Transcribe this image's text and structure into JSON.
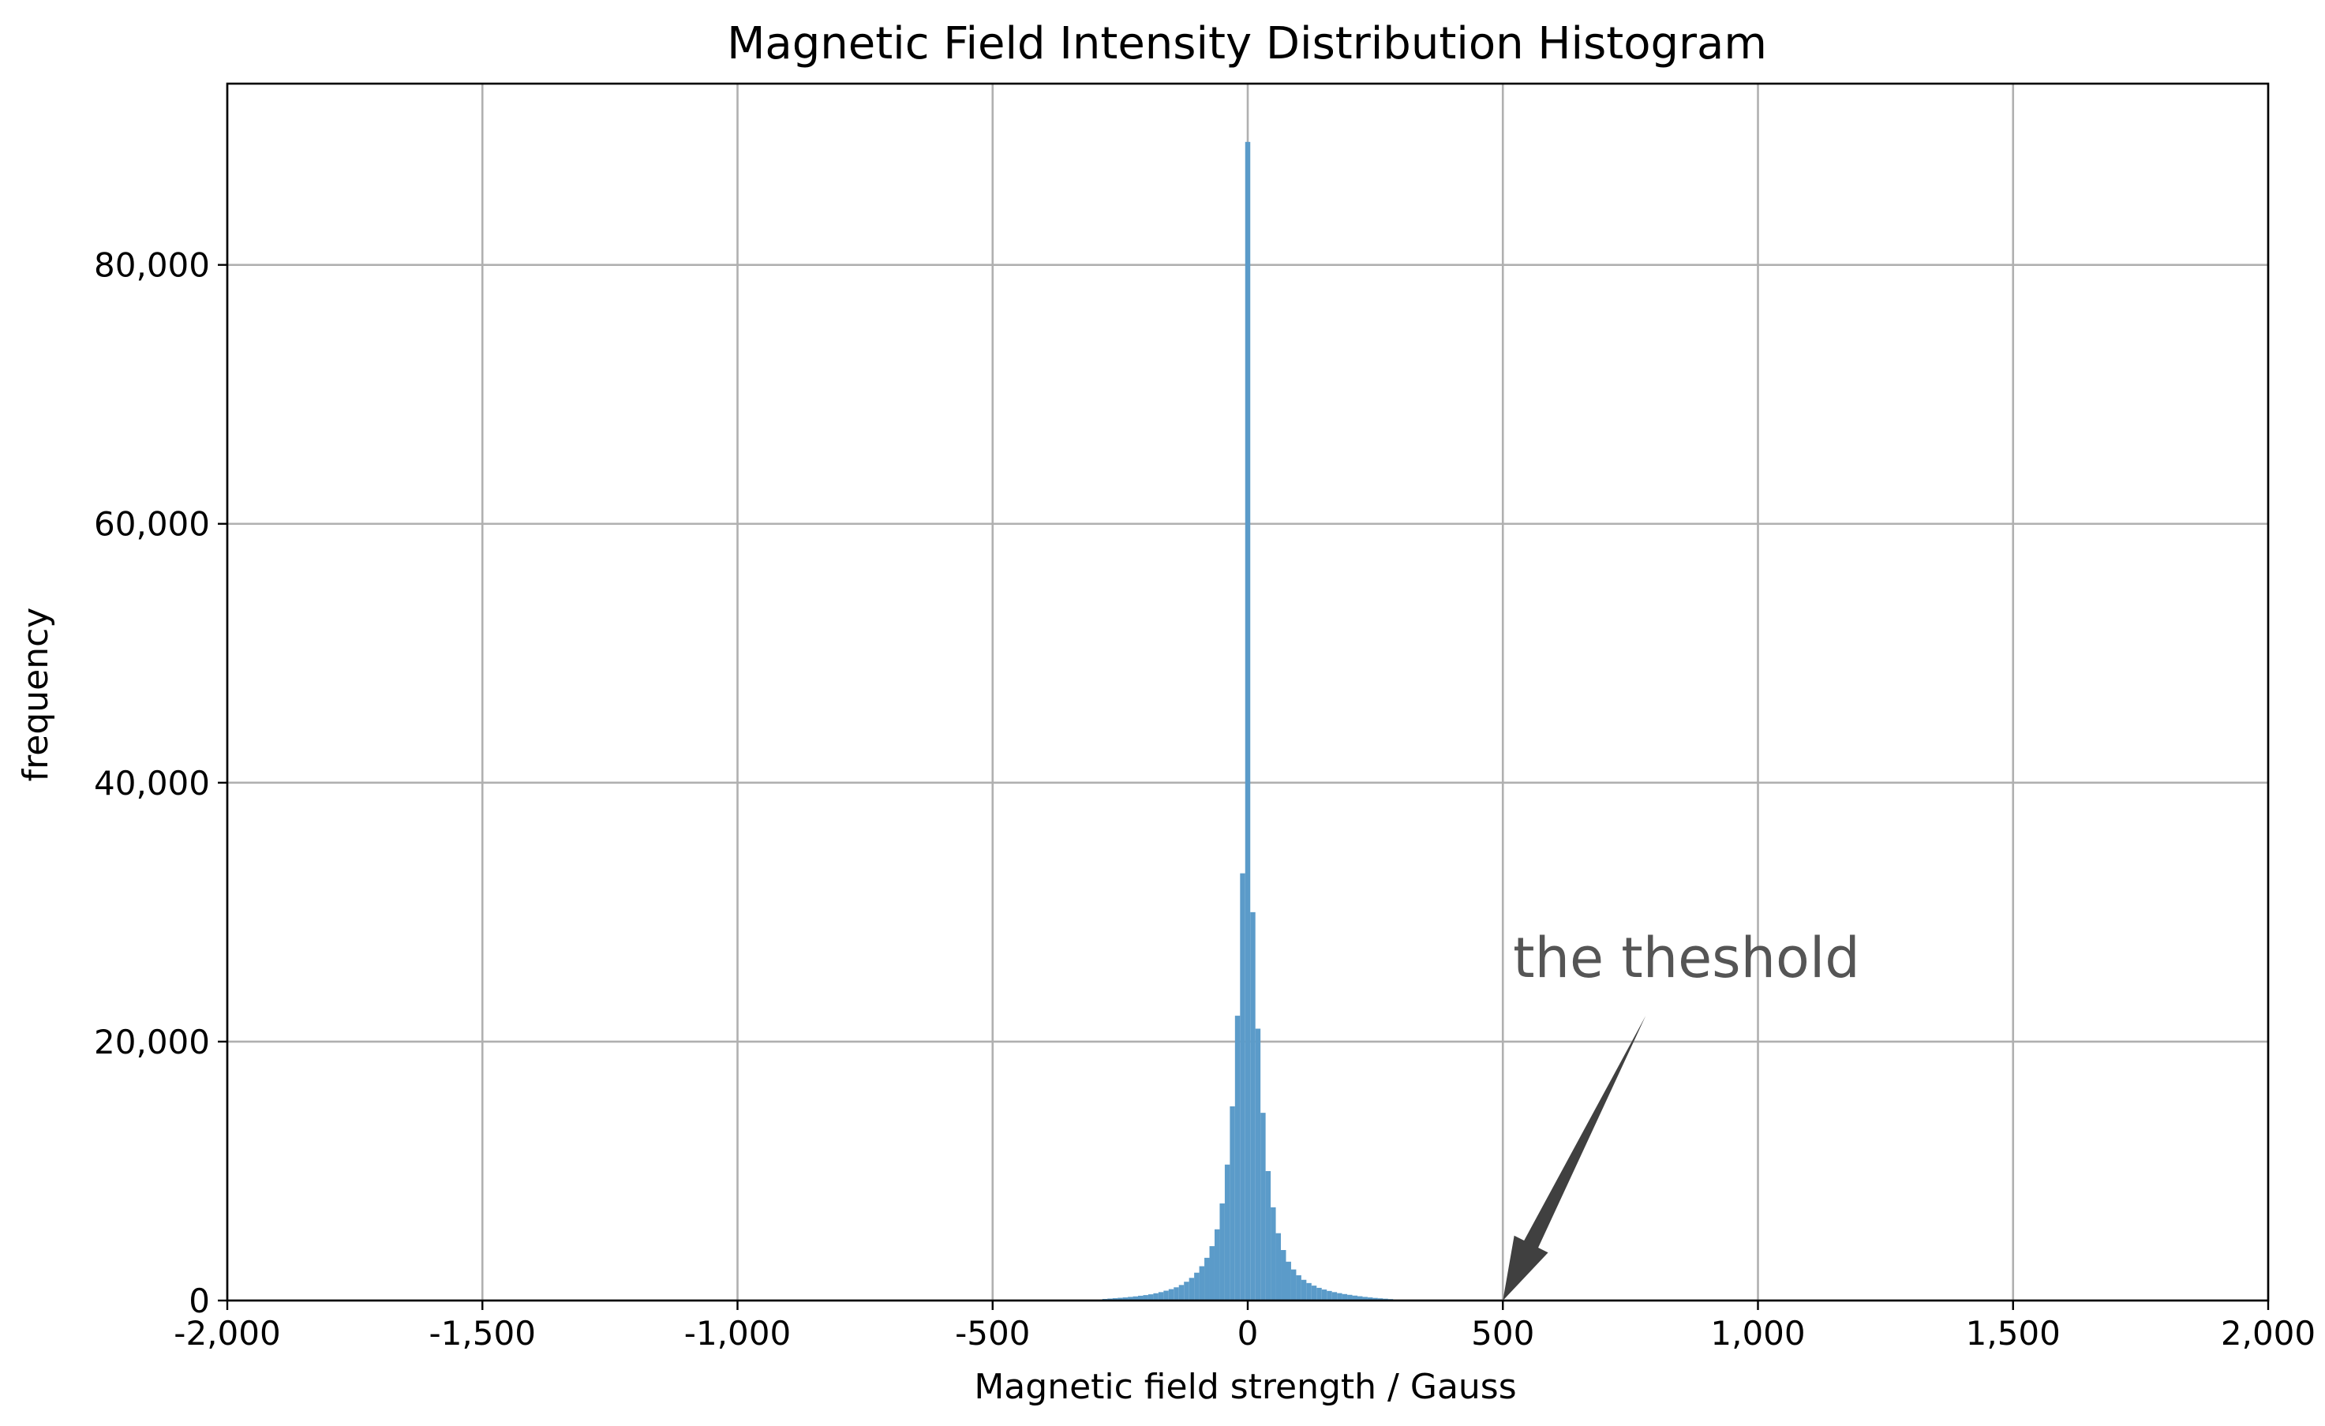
{
  "chart_data": {
    "type": "bar",
    "title": "Magnetic Field Intensity Distribution Histogram",
    "xlabel": "Magnetic field strength / Gauss",
    "ylabel": "frequency",
    "xlim": [
      -2000,
      2000
    ],
    "ylim": [
      0,
      94000
    ],
    "grid": true,
    "color": "#5b9bc9",
    "x_ticks": [
      {
        "value": -2000,
        "label": "-2,000"
      },
      {
        "value": -1500,
        "label": "-1,500"
      },
      {
        "value": -1000,
        "label": "-1,000"
      },
      {
        "value": -500,
        "label": "-500"
      },
      {
        "value": 0,
        "label": "0"
      },
      {
        "value": 500,
        "label": "500"
      },
      {
        "value": 1000,
        "label": "1,000"
      },
      {
        "value": 1500,
        "label": "1,500"
      },
      {
        "value": 2000,
        "label": "2,000"
      }
    ],
    "y_ticks": [
      {
        "value": 0,
        "label": "0"
      },
      {
        "value": 20000,
        "label": "20,000"
      },
      {
        "value": 40000,
        "label": "40,000"
      },
      {
        "value": 60000,
        "label": "60,000"
      },
      {
        "value": 80000,
        "label": "80,000"
      }
    ],
    "bin_width": 10,
    "bin_centers": [
      -280,
      -270,
      -260,
      -250,
      -240,
      -230,
      -220,
      -210,
      -200,
      -190,
      -180,
      -170,
      -160,
      -150,
      -140,
      -130,
      -120,
      -110,
      -100,
      -90,
      -80,
      -70,
      -60,
      -50,
      -40,
      -30,
      -20,
      -10,
      0,
      10,
      20,
      30,
      40,
      50,
      60,
      70,
      80,
      90,
      100,
      110,
      120,
      130,
      140,
      150,
      160,
      170,
      180,
      190,
      200,
      210,
      220,
      230,
      240,
      250,
      260,
      270,
      280
    ],
    "counts": [
      120,
      150,
      180,
      210,
      240,
      280,
      320,
      370,
      420,
      480,
      560,
      650,
      760,
      880,
      1020,
      1200,
      1450,
      1750,
      2150,
      2650,
      3300,
      4200,
      5500,
      7500,
      10500,
      15000,
      22000,
      33000,
      89500,
      30000,
      21000,
      14500,
      10000,
      7200,
      5200,
      3900,
      3000,
      2400,
      1950,
      1600,
      1350,
      1150,
      980,
      850,
      740,
      650,
      570,
      500,
      440,
      380,
      330,
      280,
      240,
      200,
      170,
      140,
      110
    ],
    "annotation": {
      "text": "the theshold",
      "x": 500,
      "y": 0,
      "text_x": 520,
      "text_y": 25000
    }
  }
}
